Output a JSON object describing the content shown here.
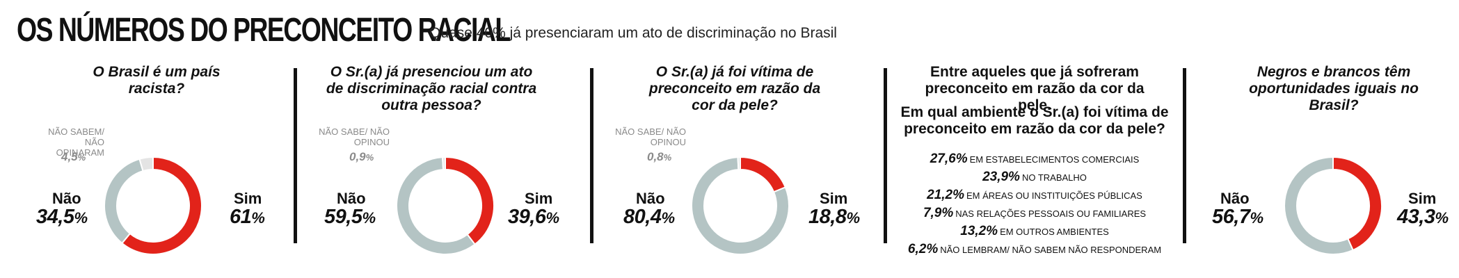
{
  "header": {
    "title": "OS NÚMEROS DO PRECONCEITO RACIAL",
    "subtitle": "Quase 40% já presenciaram um ato de discriminação no Brasil"
  },
  "colors": {
    "sim": "#e2231a",
    "nao": "#b4c4c4",
    "other": "#e4e4e4"
  },
  "panels": [
    {
      "question": "O Brasil é um país racista?",
      "no_label": "Não",
      "no_value": "34,5%",
      "yes_label": "Sim",
      "yes_value": "61%",
      "other_label": "NÃO SABEM/ NÃO OPINARAM",
      "other_value": "4,5%"
    },
    {
      "question": "O Sr.(a) já presenciou um ato de discriminação racial contra outra pessoa?",
      "no_label": "Não",
      "no_value": "59,5%",
      "yes_label": "Sim",
      "yes_value": "39,6%",
      "other_label": "NÃO SABE/ NÃO OPINOU",
      "other_value": "0,9%"
    },
    {
      "question": "O Sr.(a) já foi vítima de preconceito em razão da cor da pele?",
      "no_label": "Não",
      "no_value": "80,4%",
      "yes_label": "Sim",
      "yes_value": "18,8%",
      "other_label": "NÃO SABE/ NÃO OPINOU",
      "other_value": "0,8%"
    },
    {
      "question": "Entre aqueles que já sofreram preconceito em razão da cor da pele.",
      "question2": "Em qual ambiente o Sr.(a) foi vítima de preconceito em razão da cor da pele?",
      "rows": [
        {
          "value": "27,6%",
          "label": "EM ESTABELECIMENTOS COMERCIAIS"
        },
        {
          "value": "23,9%",
          "label": "NO TRABALHO"
        },
        {
          "value": "21,2%",
          "label": "EM ÁREAS OU INSTITUIÇÕES PÚBLICAS"
        },
        {
          "value": "7,9%",
          "label": "NAS RELAÇÕES PESSOAIS OU FAMILIARES"
        },
        {
          "value": "13,2%",
          "label": "EM OUTROS AMBIENTES"
        },
        {
          "value": "6,2%",
          "label": "NÃO LEMBRAM/ NÃO SABEM NÃO RESPONDERAM"
        }
      ]
    },
    {
      "question": "Negros e brancos têm oportunidades iguais no Brasil?",
      "no_label": "Não",
      "no_value": "56,7%",
      "yes_label": "Sim",
      "yes_value": "43,3%"
    }
  ],
  "chart_data": [
    {
      "type": "pie",
      "title": "O Brasil é um país racista?",
      "categories": [
        "Sim",
        "Não",
        "NÃO SABEM/ NÃO OPINARAM"
      ],
      "values": [
        61,
        34.5,
        4.5
      ]
    },
    {
      "type": "pie",
      "title": "O Sr.(a) já presenciou um ato de discriminação racial contra outra pessoa?",
      "categories": [
        "Sim",
        "Não",
        "NÃO SABE/ NÃO OPINOU"
      ],
      "values": [
        39.6,
        59.5,
        0.9
      ]
    },
    {
      "type": "pie",
      "title": "O Sr.(a) já foi vítima de preconceito em razão da cor da pele?",
      "categories": [
        "Sim",
        "Não",
        "NÃO SABE/ NÃO OPINOU"
      ],
      "values": [
        18.8,
        80.4,
        0.8
      ]
    },
    {
      "type": "table",
      "title": "Em qual ambiente o Sr.(a) foi vítima de preconceito em razão da cor da pele?",
      "categories": [
        "EM ESTABELECIMENTOS COMERCIAIS",
        "NO TRABALHO",
        "EM ÁREAS OU INSTITUIÇÕES PÚBLICAS",
        "NAS RELAÇÕES PESSOAIS OU FAMILIARES",
        "EM OUTROS AMBIENTES",
        "NÃO LEMBRAM/ NÃO SABEM NÃO RESPONDERAM"
      ],
      "values": [
        27.6,
        23.9,
        21.2,
        7.9,
        13.2,
        6.2
      ]
    },
    {
      "type": "pie",
      "title": "Negros e brancos têm oportunidades iguais no Brasil?",
      "categories": [
        "Sim",
        "Não"
      ],
      "values": [
        43.3,
        56.7
      ]
    }
  ]
}
